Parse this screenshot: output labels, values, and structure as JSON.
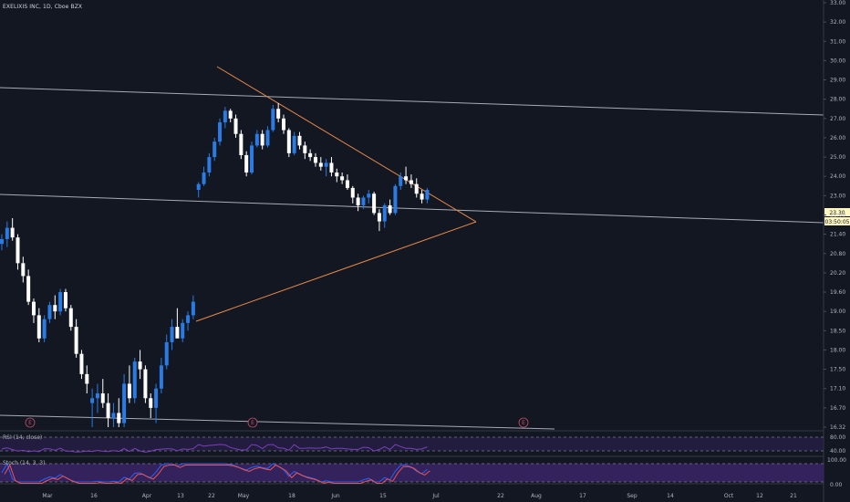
{
  "header": {
    "title": "EXELIXIS INC, 1D, Cboe BZX"
  },
  "price_axis": {
    "ticks": [
      "33.00",
      "32.00",
      "31.00",
      "30.00",
      "29.00",
      "28.00",
      "27.00",
      "26.00",
      "25.00",
      "24.00",
      "23.00",
      "22.00",
      "21.40",
      "20.80",
      "20.20",
      "19.60",
      "19.00",
      "18.50",
      "18.00",
      "17.50",
      "17.10",
      "16.70",
      "16.32"
    ],
    "last_price": "23.30",
    "countdown": "03:50:05"
  },
  "time_axis": {
    "labels": [
      "Mar",
      "16",
      "Apr",
      "13",
      "22",
      "May",
      "18",
      "Jun",
      "15",
      "Jul",
      "22",
      "Aug",
      "17",
      "Sep",
      "14",
      "Oct",
      "12",
      "21"
    ]
  },
  "earnings_markers": [
    "E",
    "E",
    "E"
  ],
  "rsi": {
    "title": "RSI (14, close)",
    "levels": [
      "80.00",
      "40.00"
    ]
  },
  "stoch": {
    "title": "Stoch (14, 3, 3)",
    "levels": [
      "100.00",
      "0.00"
    ]
  },
  "colors": {
    "background": "#131722",
    "up": "#2a7be4",
    "down": "#ffffff",
    "trendline": "#e7894b",
    "hline": "#a7abb5",
    "rsi": "#7b3fbd",
    "k": "#2962ff",
    "d": "#ef5350"
  },
  "chart_data": {
    "type": "candlestick",
    "symbol": "EXELIXIS INC",
    "interval": "1D",
    "ylim": [
      16.2,
      33.1
    ],
    "candles": [
      [
        21.1,
        21.4,
        20.9,
        21.25
      ],
      [
        21.25,
        21.8,
        21.0,
        21.6
      ],
      [
        21.6,
        21.9,
        21.2,
        21.3
      ],
      [
        21.3,
        21.4,
        20.3,
        20.5
      ],
      [
        20.5,
        20.7,
        19.9,
        20.1
      ],
      [
        20.1,
        20.3,
        19.2,
        19.3
      ],
      [
        19.3,
        19.4,
        18.7,
        18.9
      ],
      [
        18.9,
        19.1,
        18.2,
        18.3
      ],
      [
        18.3,
        18.9,
        18.2,
        18.8
      ],
      [
        18.8,
        19.3,
        18.7,
        19.2
      ],
      [
        19.2,
        19.5,
        18.8,
        19.0
      ],
      [
        19.0,
        19.7,
        18.9,
        19.6
      ],
      [
        19.6,
        19.7,
        19.0,
        19.1
      ],
      [
        19.1,
        19.2,
        18.5,
        18.6
      ],
      [
        18.6,
        18.8,
        17.8,
        17.9
      ],
      [
        17.9,
        18.0,
        17.3,
        17.4
      ],
      [
        17.4,
        17.6,
        17.0,
        17.2
      ],
      [
        16.8,
        17.1,
        16.3,
        16.9
      ],
      [
        16.9,
        17.2,
        16.6,
        17.0
      ],
      [
        17.0,
        17.3,
        16.7,
        16.8
      ],
      [
        16.8,
        17.0,
        16.3,
        16.5
      ],
      [
        16.5,
        16.8,
        16.2,
        16.6
      ],
      [
        16.6,
        16.9,
        16.3,
        16.4
      ],
      [
        16.4,
        17.4,
        16.3,
        17.2
      ],
      [
        17.2,
        17.6,
        16.8,
        16.9
      ],
      [
        16.9,
        17.8,
        16.8,
        17.7
      ],
      [
        17.7,
        18.0,
        17.3,
        17.5
      ],
      [
        17.5,
        17.6,
        16.8,
        16.9
      ],
      [
        16.9,
        17.0,
        16.5,
        16.7
      ],
      [
        16.7,
        17.2,
        16.4,
        17.1
      ],
      [
        17.1,
        17.8,
        17.0,
        17.6
      ],
      [
        17.6,
        18.4,
        17.5,
        18.2
      ],
      [
        18.2,
        18.8,
        18.0,
        18.6
      ],
      [
        18.6,
        19.1,
        18.4,
        18.3
      ],
      [
        18.3,
        18.8,
        18.2,
        18.7
      ],
      [
        18.7,
        19.0,
        18.5,
        18.9
      ],
      [
        18.9,
        19.5,
        18.8,
        19.3
      ],
      [
        23.3,
        23.7,
        22.9,
        23.6
      ],
      [
        23.6,
        24.5,
        23.5,
        24.2
      ],
      [
        24.2,
        25.2,
        24.0,
        25.0
      ],
      [
        25.0,
        26.0,
        24.8,
        25.8
      ],
      [
        25.8,
        27.0,
        25.6,
        26.8
      ],
      [
        26.8,
        27.6,
        26.5,
        27.4
      ],
      [
        27.4,
        27.5,
        26.8,
        27.0
      ],
      [
        27.0,
        27.2,
        26.0,
        26.2
      ],
      [
        26.2,
        26.4,
        24.9,
        25.1
      ],
      [
        25.1,
        25.3,
        24.0,
        24.2
      ],
      [
        24.2,
        25.8,
        24.1,
        25.6
      ],
      [
        25.6,
        26.4,
        25.5,
        26.2
      ],
      [
        26.2,
        26.4,
        25.4,
        25.6
      ],
      [
        25.6,
        26.6,
        25.5,
        26.4
      ],
      [
        26.4,
        27.7,
        26.3,
        27.5
      ],
      [
        27.5,
        27.8,
        26.8,
        27.0
      ],
      [
        27.0,
        27.2,
        26.2,
        26.4
      ],
      [
        26.4,
        26.5,
        25.0,
        25.2
      ],
      [
        25.2,
        26.3,
        25.1,
        26.1
      ],
      [
        26.1,
        26.3,
        25.4,
        25.6
      ],
      [
        25.6,
        25.8,
        24.9,
        25.2
      ],
      [
        25.2,
        25.4,
        24.8,
        25.0
      ],
      [
        25.0,
        25.2,
        24.5,
        24.7
      ],
      [
        24.7,
        25.0,
        24.3,
        24.5
      ],
      [
        24.5,
        24.9,
        24.0,
        24.7
      ],
      [
        24.7,
        25.0,
        24.0,
        24.2
      ],
      [
        24.2,
        24.4,
        23.7,
        24.0
      ],
      [
        24.0,
        24.2,
        23.6,
        23.8
      ],
      [
        23.8,
        24.1,
        23.3,
        23.4
      ],
      [
        23.4,
        23.5,
        22.6,
        22.9
      ],
      [
        22.9,
        23.1,
        22.2,
        22.5
      ],
      [
        22.5,
        23.0,
        22.3,
        22.9
      ],
      [
        22.9,
        23.3,
        22.6,
        23.1
      ],
      [
        23.1,
        23.2,
        22.0,
        22.1
      ],
      [
        22.1,
        22.3,
        21.5,
        21.8
      ],
      [
        21.8,
        22.6,
        21.6,
        22.5
      ],
      [
        22.5,
        22.8,
        22.0,
        22.1
      ],
      [
        22.1,
        23.6,
        22.0,
        23.5
      ],
      [
        23.5,
        24.2,
        23.3,
        24.0
      ],
      [
        24.0,
        24.5,
        23.6,
        23.8
      ],
      [
        23.8,
        24.1,
        23.4,
        23.6
      ],
      [
        23.6,
        23.9,
        22.9,
        23.1
      ],
      [
        23.1,
        23.3,
        22.6,
        22.8
      ],
      [
        22.8,
        23.4,
        22.6,
        23.3
      ]
    ]
  }
}
